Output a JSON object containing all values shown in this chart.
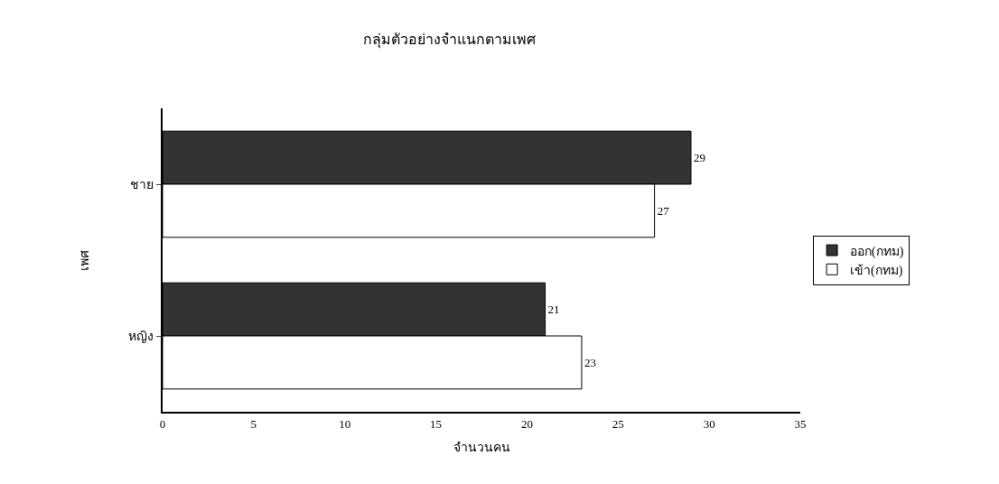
{
  "chart_data": {
    "type": "bar",
    "orientation": "horizontal",
    "title": "กลุ่มตัวอย่างจำแนกตามเพศ",
    "xlabel": "จำนวนคน",
    "ylabel": "เพศ",
    "categories": [
      "ชาย",
      "หญิง"
    ],
    "series": [
      {
        "name": "ออก(กทม)",
        "color": "#333333",
        "values": [
          29,
          21
        ]
      },
      {
        "name": "เข้า(กทม)",
        "color": "#ffffff",
        "values": [
          27,
          23
        ]
      }
    ],
    "xlim": [
      0,
      35
    ],
    "xticks": [
      0,
      5,
      10,
      15,
      20,
      25,
      30,
      35
    ],
    "legend": "right",
    "data_labels": true
  }
}
